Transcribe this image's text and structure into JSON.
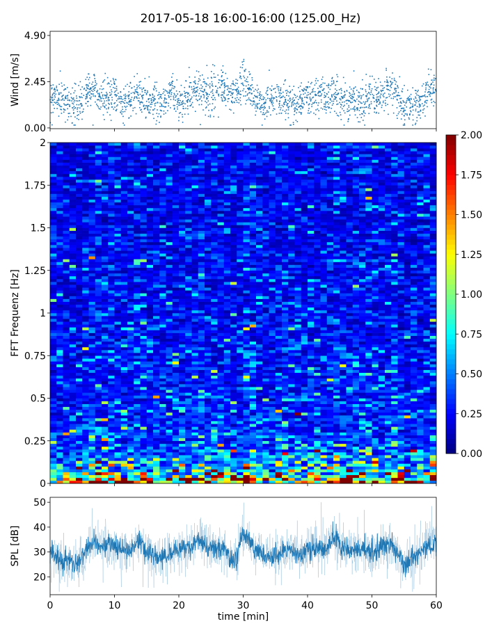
{
  "title": "2017-05-18 16:00-16:00 (125.00_Hz)",
  "chart_data": [
    {
      "id": "wind",
      "type": "scatter",
      "ylabel": "Wind [m/s]",
      "yticks": [
        "0.00",
        "2.45",
        "4.90"
      ],
      "ytick_values": [
        0,
        2.45,
        4.9
      ],
      "xlim": [
        0,
        60
      ],
      "ylim": [
        -0.04,
        5.12
      ],
      "color": "#1f77b4",
      "minute_mean": [
        1.6,
        1.7,
        1.5,
        1.3,
        1.2,
        1.4,
        2.2,
        2.1,
        1.6,
        1.5,
        1.9,
        1.4,
        1.3,
        1.8,
        1.7,
        1.3,
        1.5,
        1.3,
        1.6,
        2.0,
        1.4,
        1.5,
        1.8,
        2.1,
        1.9,
        1.8,
        2.0,
        2.1,
        1.7,
        1.9,
        2.5,
        2.0,
        1.5,
        1.2,
        1.4,
        1.6,
        1.5,
        1.4,
        1.3,
        1.6,
        1.5,
        1.7,
        1.8,
        1.6,
        1.9,
        1.6,
        1.4,
        1.5,
        1.4,
        1.6,
        1.6,
        1.5,
        1.9,
        2.1,
        1.6,
        1.1,
        1.2,
        1.3,
        1.5,
        2.1,
        2.0
      ],
      "spread": 0.6,
      "points_per_minute": 35
    },
    {
      "id": "spectrogram",
      "type": "heatmap",
      "ylabel": "FFT Frequenz [Hz]",
      "yticks": [
        "0",
        "0.25",
        "0.5",
        "0.75",
        "1",
        "1.25",
        "1.5",
        "1.75",
        "2"
      ],
      "ytick_values": [
        0,
        0.25,
        0.5,
        0.75,
        1,
        1.25,
        1.5,
        1.75,
        2
      ],
      "xlim": [
        0,
        60
      ],
      "ylim": [
        0,
        2
      ],
      "colormap": "jet",
      "clim": [
        0,
        2
      ],
      "colorbar_ticks": [
        "0.00",
        "0.25",
        "0.50",
        "0.75",
        "1.00",
        "1.25",
        "1.50",
        "1.75",
        "2.00"
      ],
      "time_bins": 60,
      "freq_bins": 120,
      "freq_profile": {
        "freq": [
          0,
          0.02,
          0.05,
          0.1,
          0.2,
          0.35,
          0.5,
          1.0,
          1.5,
          2.0
        ],
        "mean_level": [
          1.6,
          1.3,
          0.8,
          0.6,
          0.4,
          0.32,
          0.28,
          0.24,
          0.22,
          0.22
        ]
      }
    },
    {
      "id": "spl",
      "type": "line",
      "ylabel": "SPL [dB]",
      "xlabel": "time [min]",
      "yticks": [
        "20",
        "30",
        "40",
        "50"
      ],
      "ytick_values": [
        20,
        30,
        40,
        50
      ],
      "xticks": [
        "0",
        "10",
        "20",
        "30",
        "40",
        "50",
        "60"
      ],
      "xtick_values": [
        0,
        10,
        20,
        30,
        40,
        50,
        60
      ],
      "xlim": [
        0,
        60
      ],
      "ylim": [
        12.8,
        52
      ],
      "color": "#1f77b4",
      "minute_mean": [
        30,
        27,
        26,
        27,
        24,
        28,
        33,
        34,
        32,
        33,
        32,
        31,
        30,
        32,
        35,
        29,
        29,
        28,
        28,
        30,
        31,
        31,
        33,
        35,
        33,
        32,
        31,
        31,
        27,
        27,
        38,
        34,
        31,
        30,
        28,
        29,
        30,
        31,
        30,
        28,
        31,
        32,
        32,
        31,
        36,
        33,
        31,
        31,
        30,
        31,
        30,
        31,
        33,
        33,
        29,
        25,
        27,
        28,
        31,
        33,
        34
      ],
      "spread_db": 3
    }
  ]
}
